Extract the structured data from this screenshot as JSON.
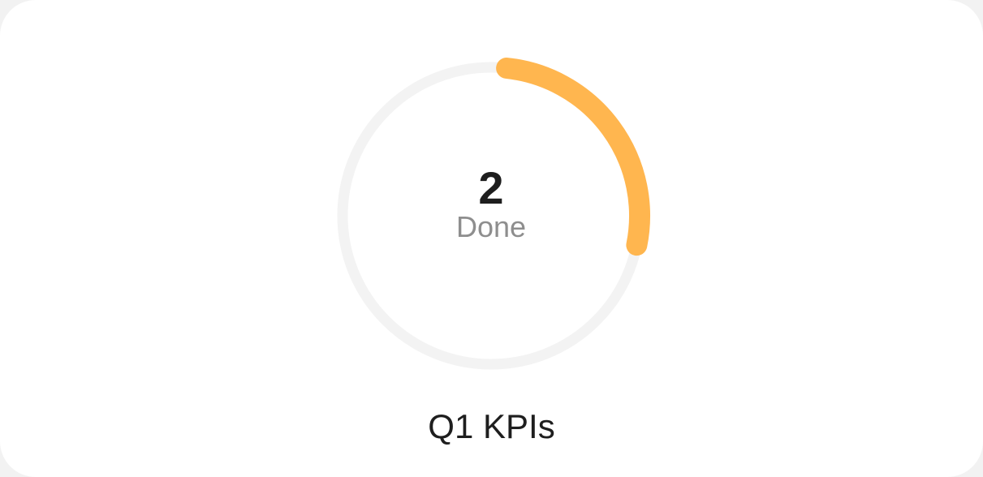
{
  "widget": {
    "count": "2",
    "status_label": "Done",
    "title": "Q1 KPIs",
    "progress_fraction": 0.265
  },
  "colors": {
    "track": "#f3f3f3",
    "progress": "#ffb64f",
    "count_text": "#1e1e1e",
    "status_text": "#8e8e8e",
    "title_text": "#1e1e1e"
  }
}
